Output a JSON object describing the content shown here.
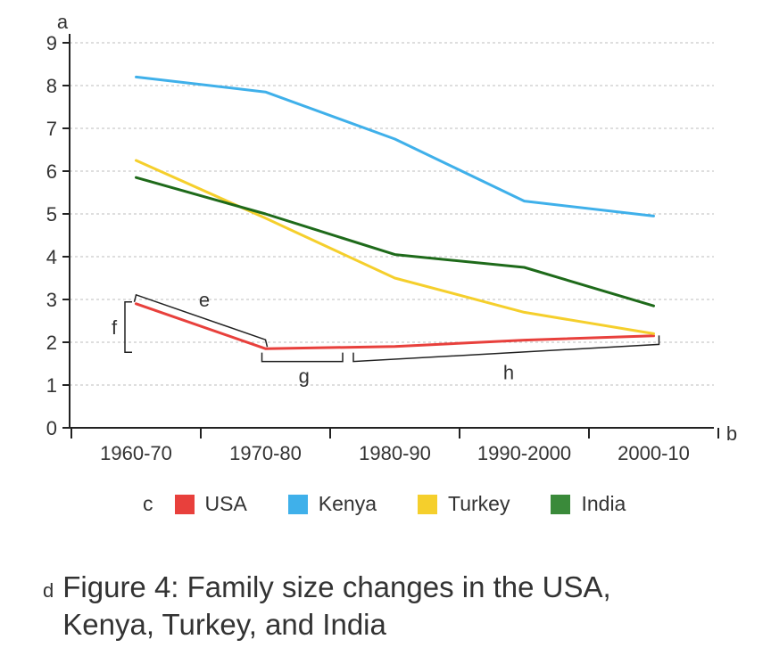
{
  "chart_data": {
    "type": "line",
    "title": "Figure 4: Family size changes in the USA, Kenya, Turkey, and India",
    "categories": [
      "1960-70",
      "1970-80",
      "1980-90",
      "1990-2000",
      "2000-10"
    ],
    "ylim": [
      0,
      9
    ],
    "yticks": [
      "0",
      "1",
      "2",
      "3",
      "4",
      "5",
      "6",
      "7",
      "8",
      "9"
    ],
    "grid": true,
    "series": [
      {
        "name": "USA",
        "color": "#e8403c",
        "values": [
          2.9,
          1.85,
          1.9,
          2.05,
          2.15
        ]
      },
      {
        "name": "Kenya",
        "color": "#3fb0ea",
        "values": [
          8.2,
          7.85,
          6.75,
          5.3,
          4.95
        ]
      },
      {
        "name": "Turkey",
        "color": "#f5cf2c",
        "values": [
          6.25,
          4.9,
          3.5,
          2.7,
          2.2
        ]
      },
      {
        "name": "India",
        "color": "#1e6a1a",
        "values": [
          5.85,
          5.0,
          4.05,
          3.75,
          2.85
        ]
      }
    ],
    "axis_markers": {
      "y": "a",
      "x": "b"
    },
    "annotations": {
      "e": "e",
      "f": "f",
      "g": "g",
      "h": "h"
    }
  },
  "legend": {
    "marker": "c",
    "items": [
      {
        "label": "USA",
        "color": "#e8403c"
      },
      {
        "label": "Kenya",
        "color": "#3fb0ea"
      },
      {
        "label": "Turkey",
        "color": "#f5cf2c"
      },
      {
        "label": "India",
        "color": "#3a8a3a"
      }
    ]
  },
  "caption": {
    "marker": "d",
    "text": "Figure 4: Family size changes in the USA, Kenya, Turkey, and India"
  }
}
